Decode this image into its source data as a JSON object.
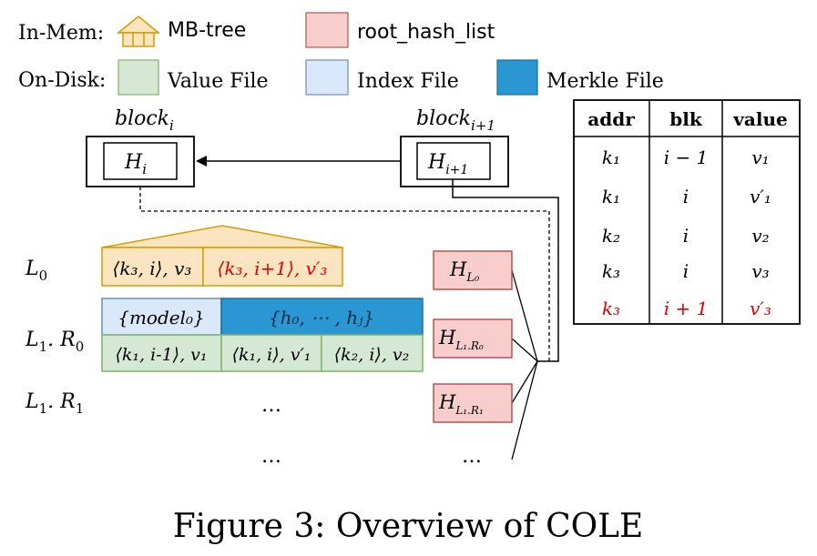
{
  "legend": {
    "in_mem_label": "In-Mem:",
    "mbtree_label": "MB-tree",
    "root_hash_label": "root_hash_list",
    "on_disk_label": "On-Disk:",
    "value_file_label": "Value File",
    "index_file_label": "Index File",
    "merkle_file_label": "Merkle File"
  },
  "blocks": {
    "block_i_label": "block",
    "block_i_sub": "i",
    "block_i1_label": "block",
    "block_i1_sub": "i+1",
    "hash_i_label": "H",
    "hash_i_sub": "i",
    "hash_i1_label": "H",
    "hash_i1_sub": "i+1"
  },
  "levels": {
    "l0_label": "L",
    "l0_sub": "0",
    "l1r0_label": "L",
    "l1r0_sub": "1",
    "l1r0_dot": ". R",
    "l1r0_rsub": "0",
    "l1r1_label": "L",
    "l1r1_sub": "1",
    "l1r1_dot": ". R",
    "l1r1_rsub": "1"
  },
  "l0_entries": {
    "e1": "⟨k₃, i⟩, v₃",
    "e2": "⟨k₃, i+1⟩, v′₃"
  },
  "l1r0": {
    "model": "{model₀}",
    "merkle": "{h₀, ⋯ , hⱼ}",
    "v1": "⟨k₁, i-1⟩, v₁",
    "v2": "⟨k₁, i⟩, v′₁",
    "v3": "⟨k₂, i⟩, v₂"
  },
  "ellipsis": {
    "r1": "…",
    "bottom": "…",
    "hash_bottom": "…"
  },
  "root_hashes": {
    "h0_label": "H",
    "h0_sub": "L₀",
    "h1_label": "H",
    "h1_sub": "L₁.R₀",
    "h2_label": "H",
    "h2_sub": "L₁.R₁"
  },
  "table": {
    "headers": [
      "addr",
      "blk",
      "value"
    ],
    "rows": [
      {
        "addr": "k₁",
        "blk": "i − 1",
        "value": "v₁",
        "highlight": false
      },
      {
        "addr": "k₁",
        "blk": "i",
        "value": "v′₁",
        "highlight": false
      },
      {
        "addr": "k₂",
        "blk": "i",
        "value": "v₂",
        "highlight": false
      },
      {
        "addr": "k₃",
        "blk": "i",
        "value": "v₃",
        "highlight": false
      },
      {
        "addr": "k₃",
        "blk": "i + 1",
        "value": "v′₃",
        "highlight": true
      }
    ]
  },
  "caption": "Figure 3: Overview of COLE",
  "colors": {
    "mbtree_fill": "#fbe5c0",
    "mbtree_stroke": "#d79b00",
    "root_hash_fill": "#f8cecc",
    "root_hash_stroke": "#b85450",
    "value_fill": "#d5e8d4",
    "value_stroke": "#82b366",
    "index_fill": "#dae8fc",
    "index_stroke": "#6c8ebf",
    "merkle_fill": "#2b97d2",
    "highlight": "#e00000"
  }
}
